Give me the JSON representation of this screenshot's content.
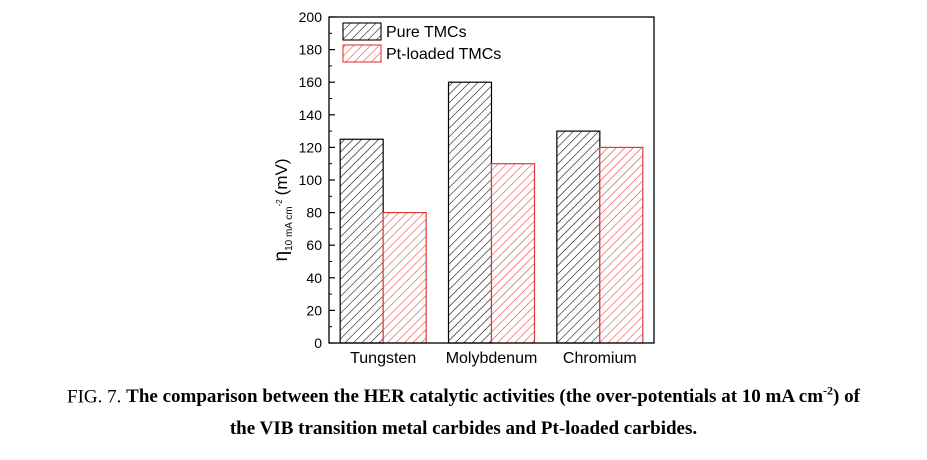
{
  "chart_data": {
    "type": "bar",
    "categories": [
      "Tungsten",
      "Molybdenum",
      "Chromium"
    ],
    "series": [
      {
        "name": "Pure TMCs",
        "values": [
          125,
          160,
          130
        ],
        "color": "#000000"
      },
      {
        "name": "Pt-loaded TMCs",
        "values": [
          80,
          110,
          120
        ],
        "color": "#e03a3a"
      }
    ],
    "ylim": [
      0,
      200
    ],
    "yticks": [
      0,
      20,
      40,
      60,
      80,
      100,
      120,
      140,
      160,
      180,
      200
    ],
    "ylabel": {
      "symbol": "η",
      "subscript": "10 mA cm",
      "superscript": "-2",
      "unit": "(mV)"
    },
    "legend_position": "top-left",
    "pattern": "diagonal hatch"
  },
  "caption": {
    "prefix": "FIG. 7.",
    "line1": "The comparison between the HER catalytic activities (the over-potentials at 10 mA cm",
    "superscript": "-2",
    "line1_end": ") of",
    "line2": "the VIB transition metal carbides and Pt-loaded carbides."
  }
}
